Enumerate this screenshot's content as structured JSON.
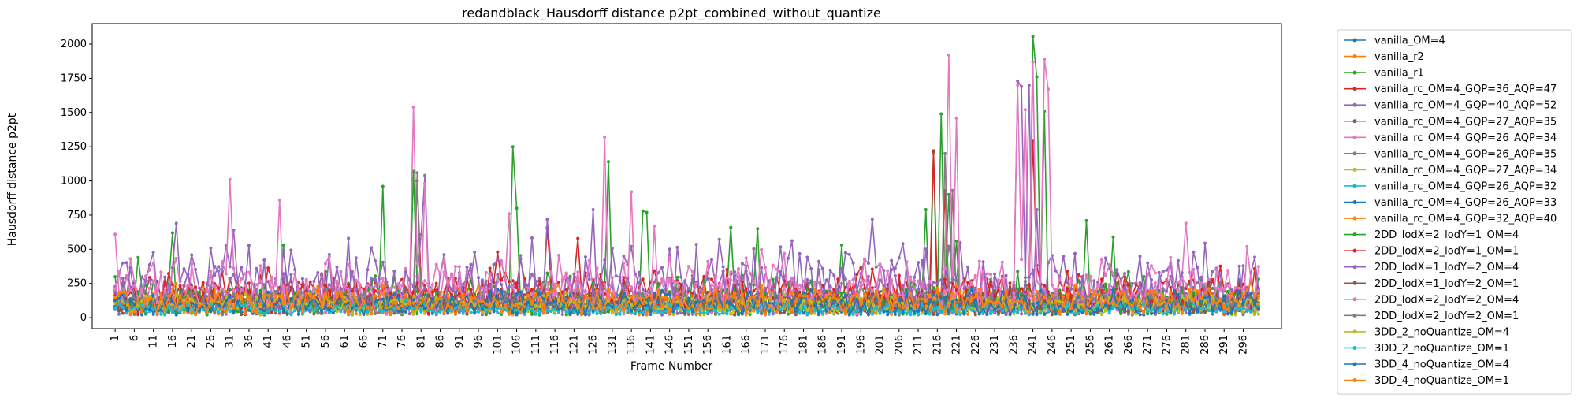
{
  "chart_data": {
    "type": "line",
    "title": "redandblack_Hausdorff distance p2pt_combined_without_quantize",
    "xlabel": "Frame Number",
    "ylabel": "Hausdorff distance p2pt",
    "x_range": [
      1,
      300
    ],
    "x_tick_labels": [
      "1",
      "6",
      "11",
      "16",
      "21",
      "26",
      "31",
      "36",
      "41",
      "46",
      "51",
      "56",
      "61",
      "66",
      "71",
      "76",
      "81",
      "86",
      "91",
      "96",
      "101",
      "106",
      "111",
      "116",
      "121",
      "126",
      "131",
      "136",
      "141",
      "146",
      "151",
      "156",
      "161",
      "166",
      "171",
      "176",
      "181",
      "186",
      "191",
      "196",
      "201",
      "206",
      "211",
      "216",
      "221",
      "226",
      "231",
      "236",
      "241",
      "246",
      "251",
      "256",
      "261",
      "266",
      "271",
      "276",
      "281",
      "286",
      "291",
      "296"
    ],
    "y_ticks": [
      0,
      250,
      500,
      750,
      1000,
      1250,
      1500,
      1750,
      2000
    ],
    "y_tick_labels": [
      "0",
      "250",
      "500",
      "750",
      "1000",
      "1250",
      "1500",
      "1750",
      "2000"
    ],
    "ylim": [
      -80,
      2150
    ],
    "grid": false,
    "legend_position": "outside-right",
    "series": [
      {
        "name": "vanilla_OM=4",
        "color": "#1f77b4",
        "base": 80,
        "spread": 60,
        "seed": 1,
        "spikes": []
      },
      {
        "name": "vanilla_r2",
        "color": "#ff7f0e",
        "base": 100,
        "spread": 90,
        "seed": 2,
        "spikes": []
      },
      {
        "name": "vanilla_r1",
        "color": "#2ca02c",
        "base": 140,
        "spread": 140,
        "seed": 3,
        "spikes": [
          [
            1,
            300
          ],
          [
            7,
            440
          ],
          [
            16,
            620
          ],
          [
            45,
            530
          ],
          [
            71,
            960
          ],
          [
            79,
            1070
          ],
          [
            105,
            1250
          ],
          [
            106,
            800
          ],
          [
            130,
            1140
          ],
          [
            139,
            780
          ],
          [
            140,
            770
          ],
          [
            162,
            660
          ],
          [
            169,
            650
          ],
          [
            191,
            530
          ],
          [
            213,
            790
          ],
          [
            215,
            1210
          ],
          [
            217,
            1490
          ],
          [
            219,
            900
          ],
          [
            221,
            560
          ],
          [
            241,
            2055
          ],
          [
            242,
            1760
          ],
          [
            244,
            1510
          ],
          [
            255,
            710
          ],
          [
            262,
            590
          ]
        ]
      },
      {
        "name": "vanilla_rc_OM=4_GQP=36_AQP=47",
        "color": "#d62728",
        "base": 210,
        "spread": 120,
        "seed": 4,
        "spikes": [
          [
            1,
            200
          ],
          [
            80,
            1000
          ],
          [
            101,
            480
          ],
          [
            107,
            430
          ],
          [
            114,
            660
          ],
          [
            122,
            580
          ],
          [
            215,
            1220
          ],
          [
            218,
            930
          ],
          [
            241,
            1290
          ]
        ]
      },
      {
        "name": "vanilla_rc_OM=4_GQP=40_AQP=52",
        "color": "#9467bd",
        "base": 280,
        "spread": 240,
        "seed": 5,
        "spikes": [
          [
            3,
            400
          ],
          [
            17,
            690
          ],
          [
            32,
            640
          ],
          [
            82,
            1040
          ],
          [
            114,
            720
          ],
          [
            126,
            790
          ],
          [
            199,
            720
          ],
          [
            213,
            500
          ],
          [
            237,
            1730
          ],
          [
            238,
            1690
          ],
          [
            240,
            1700
          ],
          [
            242,
            790
          ],
          [
            283,
            480
          ]
        ]
      },
      {
        "name": "vanilla_rc_OM=4_GQP=27_AQP=35",
        "color": "#8c564b",
        "base": 90,
        "spread": 70,
        "seed": 6,
        "spikes": []
      },
      {
        "name": "vanilla_rc_OM=4_GQP=26_AQP=34",
        "color": "#e377c2",
        "base": 230,
        "spread": 190,
        "seed": 7,
        "spikes": [
          [
            1,
            610
          ],
          [
            31,
            1010
          ],
          [
            44,
            860
          ],
          [
            79,
            1540
          ],
          [
            82,
            980
          ],
          [
            104,
            760
          ],
          [
            129,
            1320
          ],
          [
            136,
            920
          ],
          [
            142,
            670
          ],
          [
            219,
            1920
          ],
          [
            221,
            1460
          ],
          [
            237,
            1700
          ],
          [
            239,
            1520
          ],
          [
            241,
            1870
          ],
          [
            244,
            1890
          ],
          [
            245,
            1670
          ],
          [
            281,
            690
          ],
          [
            297,
            520
          ]
        ]
      },
      {
        "name": "vanilla_rc_OM=4_GQP=26_AQP=35",
        "color": "#7f7f7f",
        "base": 100,
        "spread": 80,
        "seed": 8,
        "spikes": [
          [
            80,
            1060
          ],
          [
            218,
            1200
          ],
          [
            220,
            930
          ]
        ]
      },
      {
        "name": "vanilla_rc_OM=4_GQP=27_AQP=34",
        "color": "#bcbd22",
        "base": 95,
        "spread": 75,
        "seed": 9,
        "spikes": []
      },
      {
        "name": "vanilla_rc_OM=4_GQP=26_AQP=32",
        "color": "#17becf",
        "base": 70,
        "spread": 50,
        "seed": 10,
        "spikes": []
      },
      {
        "name": "vanilla_rc_OM=4_GQP=26_AQP=33",
        "color": "#1f77b4",
        "base": 85,
        "spread": 65,
        "seed": 11,
        "spikes": []
      },
      {
        "name": "vanilla_rc_OM=4_GQP=32_AQP=40",
        "color": "#ff7f0e",
        "base": 110,
        "spread": 100,
        "seed": 12,
        "spikes": []
      },
      {
        "name": "2DD_lodX=2_lodY=1_OM=4",
        "color": "#2ca02c",
        "base": 120,
        "spread": 110,
        "seed": 13,
        "spikes": []
      },
      {
        "name": "2DD_lodX=2_lodY=1_OM=1",
        "color": "#d62728",
        "base": 150,
        "spread": 110,
        "seed": 14,
        "spikes": []
      },
      {
        "name": "2DD_lodX=1_lodY=2_OM=4",
        "color": "#9467bd",
        "base": 200,
        "spread": 160,
        "seed": 15,
        "spikes": []
      },
      {
        "name": "2DD_lodX=1_lodY=2_OM=1",
        "color": "#8c564b",
        "base": 110,
        "spread": 80,
        "seed": 16,
        "spikes": []
      },
      {
        "name": "2DD_lodX=2_lodY=2_OM=4",
        "color": "#e377c2",
        "base": 170,
        "spread": 140,
        "seed": 17,
        "spikes": []
      },
      {
        "name": "2DD_lodX=2_lodY=2_OM=1",
        "color": "#7f7f7f",
        "base": 100,
        "spread": 70,
        "seed": 18,
        "spikes": []
      },
      {
        "name": "3DD_2_noQuantize_OM=4",
        "color": "#bcbd22",
        "base": 90,
        "spread": 70,
        "seed": 19,
        "spikes": []
      },
      {
        "name": "3DD_2_noQuantize_OM=1",
        "color": "#17becf",
        "base": 60,
        "spread": 40,
        "seed": 20,
        "spikes": []
      },
      {
        "name": "3DD_4_noQuantize_OM=4",
        "color": "#1f77b4",
        "base": 100,
        "spread": 80,
        "seed": 21,
        "spikes": []
      },
      {
        "name": "3DD_4_noQuantize_OM=1",
        "color": "#ff7f0e",
        "base": 120,
        "spread": 90,
        "seed": 22,
        "spikes": []
      }
    ]
  }
}
